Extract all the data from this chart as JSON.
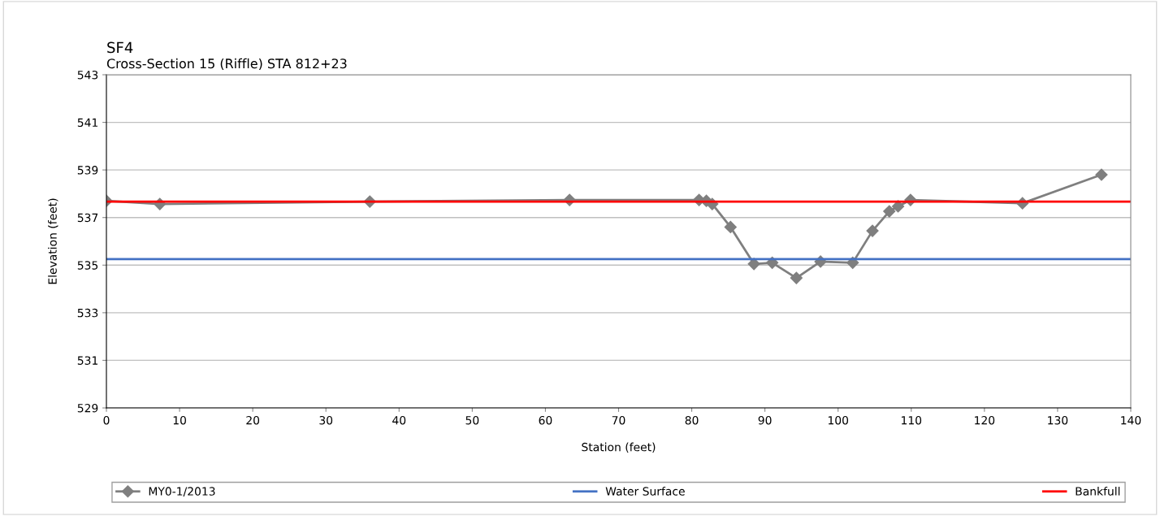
{
  "chart_data": {
    "type": "line",
    "title": "SF4",
    "subtitle": "Cross-Section 15 (Riffle) STA 812+23",
    "xlabel": "Station (feet)",
    "ylabel": "Elevation (feet)",
    "xlim": [
      0,
      140
    ],
    "xticks": [
      0,
      10,
      20,
      30,
      40,
      50,
      60,
      70,
      80,
      90,
      100,
      110,
      120,
      130,
      140
    ],
    "ylim": [
      529,
      543
    ],
    "yticks": [
      529,
      531,
      533,
      535,
      537,
      539,
      541,
      543
    ],
    "grid": "y",
    "legend": "bottom",
    "series": [
      {
        "name": "MY0-1/2013",
        "color": "#7f7f7f",
        "marker": "diamond",
        "x": [
          0,
          7.3,
          36,
          63.3,
          81,
          82,
          82.8,
          85.3,
          88.5,
          91,
          94.3,
          97.6,
          102,
          104.7,
          107,
          108.2,
          109.9,
          125.2,
          136
        ],
        "values": [
          537.7,
          537.57,
          537.67,
          537.74,
          537.74,
          537.7,
          537.57,
          536.6,
          535.05,
          535.1,
          534.46,
          535.15,
          535.1,
          536.44,
          537.26,
          537.47,
          537.74,
          537.6,
          538.8
        ]
      },
      {
        "name": "Water Surface",
        "color": "#4472c4",
        "x": [
          0,
          140
        ],
        "values": [
          535.25,
          535.25
        ]
      },
      {
        "name": "Bankfull",
        "color": "#ff0000",
        "x": [
          0,
          140
        ],
        "values": [
          537.67,
          537.67
        ]
      }
    ]
  }
}
